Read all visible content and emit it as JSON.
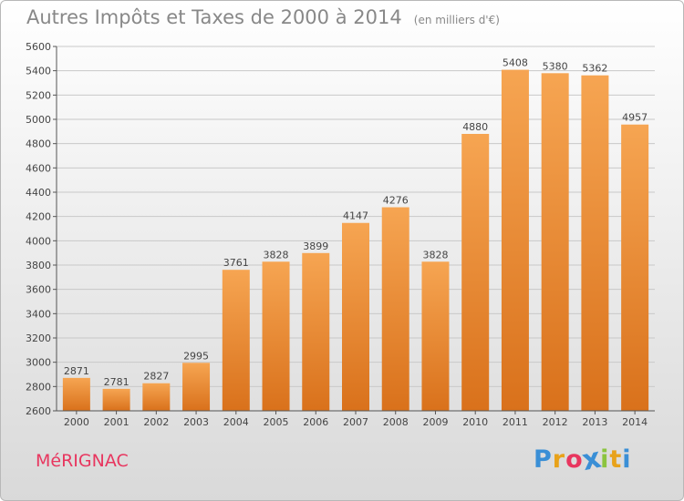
{
  "header": {
    "title": "Autres Impôts et Taxes de 2000 à 2014",
    "unit": "(en milliers d'€)"
  },
  "footer": {
    "commune": "MéRIGNAC",
    "logo_letters": [
      "P",
      "r",
      "o",
      "x",
      "i",
      "t",
      "i"
    ],
    "logo_colors": [
      "#3a8fd6",
      "#e8a21a",
      "#e8365f",
      "#3a8fd6",
      "#8bc43f",
      "#e8a21a",
      "#3a8fd6"
    ]
  },
  "colors": {
    "bar_light": "#f6a552",
    "bar_dark": "#d9711b",
    "grid": "#c8c8c8",
    "text": "#444444"
  },
  "chart_data": {
    "type": "bar",
    "title": "Autres Impôts et Taxes de 2000 à 2014",
    "xlabel": "",
    "ylabel": "(en milliers d'€)",
    "categories": [
      "2000",
      "2001",
      "2002",
      "2003",
      "2004",
      "2005",
      "2006",
      "2007",
      "2008",
      "2009",
      "2010",
      "2011",
      "2012",
      "2013",
      "2014"
    ],
    "values": [
      2871,
      2781,
      2827,
      2995,
      3761,
      3828,
      3899,
      4147,
      4276,
      3828,
      4880,
      5408,
      5380,
      5362,
      4957
    ],
    "ylim": [
      2600,
      5600
    ],
    "yticks": [
      2600,
      2800,
      3000,
      3200,
      3400,
      3600,
      3800,
      4000,
      4200,
      4400,
      4600,
      4800,
      5000,
      5200,
      5400,
      5600
    ],
    "grid": true,
    "legend": "none"
  }
}
